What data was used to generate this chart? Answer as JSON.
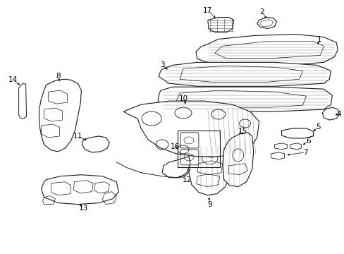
{
  "bg_color": "#ffffff",
  "line_color": "#1a1a1a",
  "label_color": "#000000",
  "figsize": [
    4.89,
    3.6
  ],
  "dpi": 100,
  "lw": 0.8,
  "label_fs": 7.5
}
